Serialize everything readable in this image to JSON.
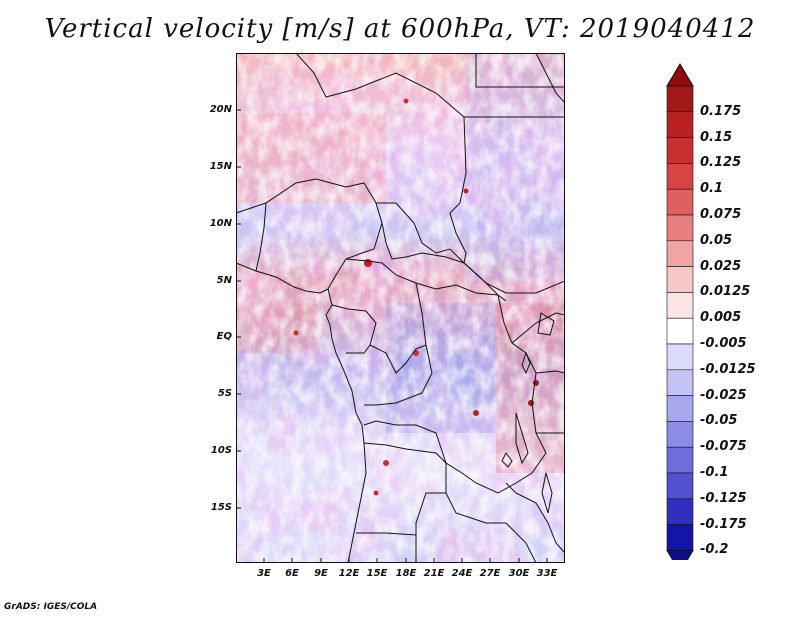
{
  "title": "Vertical velocity [m/s] at 600hPa, VT: 2019040412",
  "footer": "GrADS: IGES/COLA",
  "map": {
    "lat_labels": [
      "20N",
      "15N",
      "10N",
      "5N",
      "EQ",
      "5S",
      "10S",
      "15S"
    ],
    "lon_labels": [
      "3E",
      "6E",
      "9E",
      "12E",
      "15E",
      "18E",
      "21E",
      "24E",
      "27E",
      "30E",
      "33E"
    ]
  },
  "colorbar": {
    "labels": [
      "0.175",
      "0.15",
      "0.125",
      "0.1",
      "0.075",
      "0.05",
      "0.025",
      "0.0125",
      "0.005",
      "-0.005",
      "-0.0125",
      "-0.025",
      "-0.05",
      "-0.075",
      "-0.1",
      "-0.125",
      "-0.175",
      "-0.2"
    ],
    "colors": [
      "#a01818",
      "#b82222",
      "#c83030",
      "#d84444",
      "#e06060",
      "#e88080",
      "#f0a4a4",
      "#f6c8c8",
      "#fbe4e4",
      "#ffffff",
      "#dcdcfa",
      "#c4c4f4",
      "#a8a8ee",
      "#8c8ce6",
      "#6e6ede",
      "#5050d0",
      "#3030c0",
      "#1414a8"
    ],
    "top_arrow_color": "#8c0c0c",
    "bottom_arrow_color": "#0c0c90"
  }
}
